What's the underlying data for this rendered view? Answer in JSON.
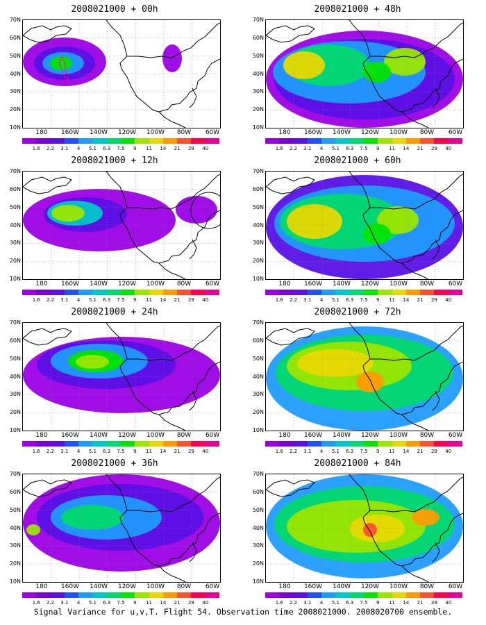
{
  "panels": [
    {
      "title": "2008021000 + 00h"
    },
    {
      "title": "2008021000 + 48h"
    },
    {
      "title": "2008021000 + 12h"
    },
    {
      "title": "2008021000 + 60h"
    },
    {
      "title": "2008021000 + 24h"
    },
    {
      "title": "2008021000 + 72h"
    },
    {
      "title": "2008021000 + 36h"
    },
    {
      "title": "2008021000 + 84h"
    }
  ],
  "axes": {
    "lat_labels": [
      "70N",
      "60N",
      "50N",
      "40N",
      "30N",
      "20N",
      "10N"
    ],
    "lon_labels": [
      "180",
      "160W",
      "140W",
      "120W",
      "100W",
      "80W",
      "60W"
    ]
  },
  "colorbar": {
    "labels": [
      "1.6",
      "2.2",
      "3.1",
      "4",
      "5.1",
      "6.3",
      "7.5",
      "9",
      "11",
      "14",
      "21",
      "29",
      "40"
    ],
    "colors": [
      "#9b00e6",
      "#7a00d9",
      "#5a10e6",
      "#2050ff",
      "#1f9bff",
      "#00c8c8",
      "#00d96e",
      "#00e600",
      "#9be600",
      "#e6d900",
      "#ff9b00",
      "#ff5030",
      "#ff0050",
      "#e60096"
    ]
  },
  "caption": "Signal Variance for u,v,T. Flight 54. Observation time 2008021000. 2008020700 ensemble."
}
